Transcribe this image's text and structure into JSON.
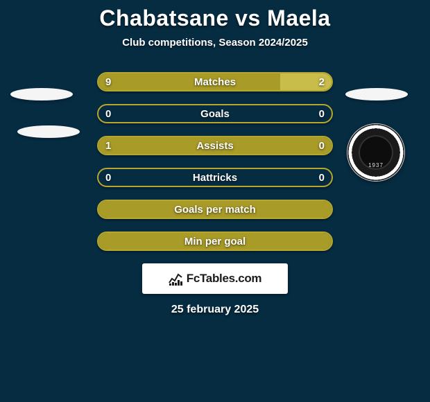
{
  "header": {
    "player1": "Chabatsane",
    "vs": "vs",
    "player2": "Maela",
    "subtitle": "Club competitions, Season 2024/2025"
  },
  "colors": {
    "background": "#062c42",
    "olive": "#a99b27",
    "olive_border": "#b5a730",
    "highlight_right": "#c8bc4a",
    "white": "#ffffff"
  },
  "crest": {
    "year": "1937"
  },
  "bars": [
    {
      "label": "Matches",
      "left": "9",
      "right": "2",
      "left_pct": 78,
      "right_pct": 22,
      "show_vals": true,
      "fill": "dual"
    },
    {
      "label": "Goals",
      "left": "0",
      "right": "0",
      "left_pct": 0,
      "right_pct": 0,
      "show_vals": true,
      "fill": "none"
    },
    {
      "label": "Assists",
      "left": "1",
      "right": "0",
      "left_pct": 100,
      "right_pct": 0,
      "show_vals": true,
      "fill": "left_full"
    },
    {
      "label": "Hattricks",
      "left": "0",
      "right": "0",
      "left_pct": 0,
      "right_pct": 0,
      "show_vals": true,
      "fill": "none"
    },
    {
      "label": "Goals per match",
      "left": "",
      "right": "",
      "left_pct": 100,
      "right_pct": 0,
      "show_vals": false,
      "fill": "full"
    },
    {
      "label": "Min per goal",
      "left": "",
      "right": "",
      "left_pct": 100,
      "right_pct": 0,
      "show_vals": false,
      "fill": "full"
    }
  ],
  "site": {
    "name": "FcTables.com"
  },
  "date": "25 february 2025"
}
